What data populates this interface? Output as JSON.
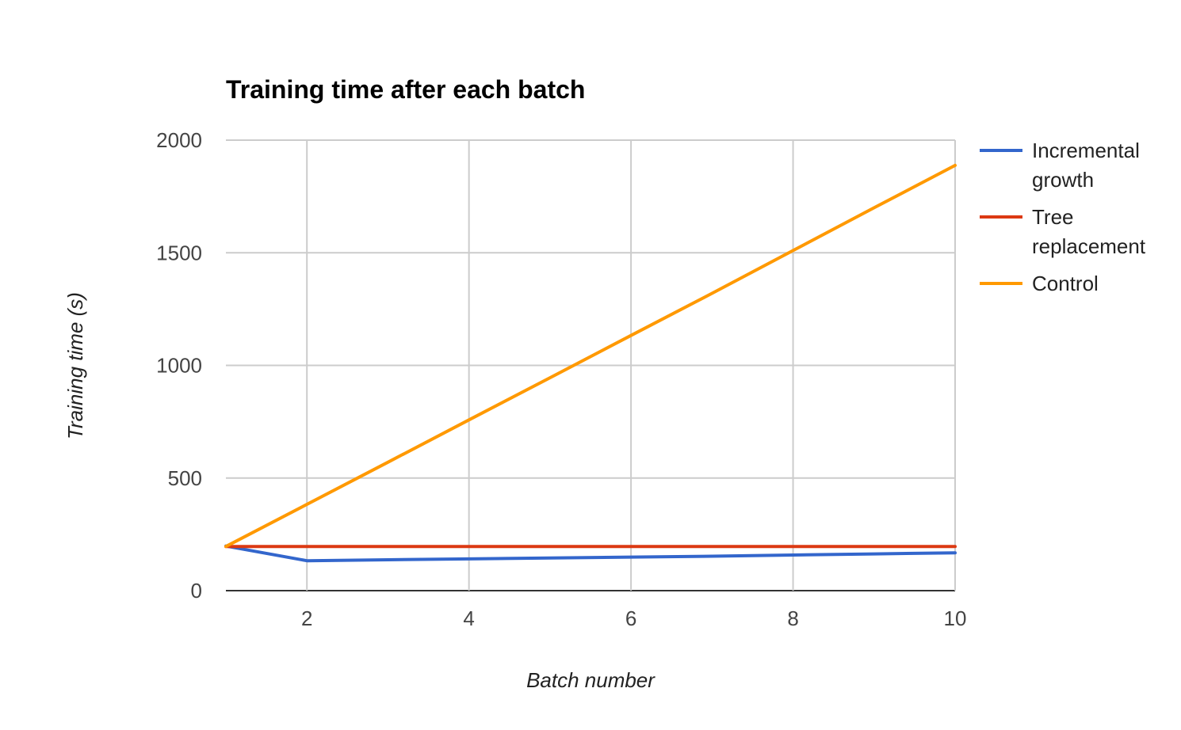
{
  "chart_data": {
    "type": "line",
    "title": "Training time after each batch",
    "xlabel": "Batch number",
    "ylabel": "Training time (s)",
    "xlim": [
      1,
      10
    ],
    "ylim": [
      0,
      2000
    ],
    "x_ticks": [
      2,
      4,
      6,
      8,
      10
    ],
    "y_ticks": [
      0,
      500,
      1000,
      1500,
      2000
    ],
    "grid": true,
    "legend_position": "right",
    "x": [
      1,
      2,
      3,
      4,
      5,
      6,
      7,
      8,
      9,
      10
    ],
    "series": [
      {
        "name": "Incremental growth",
        "legend_lines": [
          "Incremental",
          "growth"
        ],
        "color": "#3366cc",
        "values": [
          198,
          133,
          137,
          141,
          145,
          149,
          153,
          158,
          163,
          168
        ]
      },
      {
        "name": "Tree replacement",
        "legend_lines": [
          "Tree",
          "replacement"
        ],
        "color": "#dc3912",
        "values": [
          196,
          196,
          196,
          196,
          196,
          196,
          196,
          196,
          196,
          196
        ]
      },
      {
        "name": "Control",
        "legend_lines": [
          "Control"
        ],
        "color": "#ff9900",
        "values": [
          196,
          383,
          570,
          758,
          945,
          1133,
          1320,
          1510,
          1700,
          1888
        ]
      }
    ]
  }
}
